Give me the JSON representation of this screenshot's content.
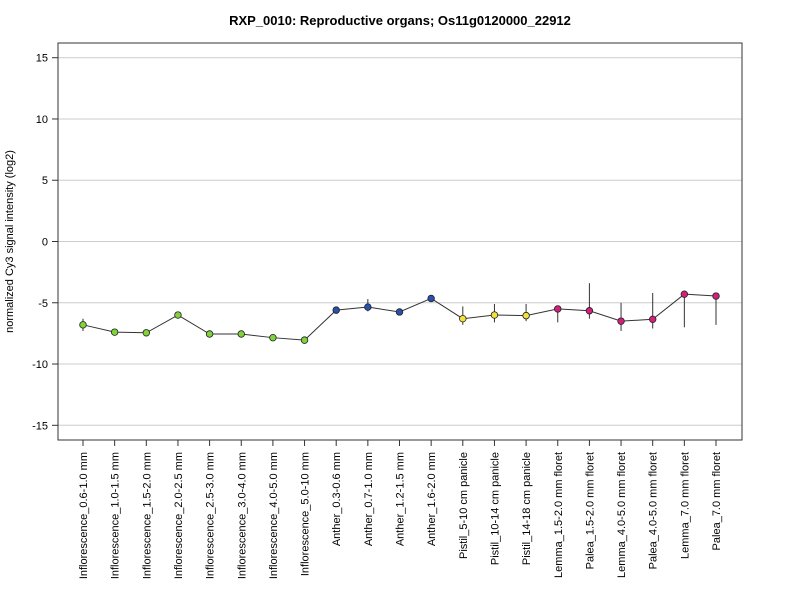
{
  "chart_data": {
    "type": "line",
    "title": "RXP_0010: Reproductive organs; Os11g0120000_22912",
    "ylabel": "normalized Cy3 signal intensity (log2)",
    "xlabel": "",
    "ylim": [
      -16.2,
      16.2
    ],
    "yticks": [
      -15,
      -10,
      -5,
      0,
      5,
      10,
      15
    ],
    "grid": true,
    "categories": [
      "Inflorescence_0.6-1.0 mm",
      "Inflorescence_1.0-1.5 mm",
      "Inflorescence_1.5-2.0 mm",
      "Inflorescence_2.0-2.5 mm",
      "Inflorescence_2.5-3.0 mm",
      "Inflorescence_3.0-4.0 mm",
      "Inflorescence_4.0-5.0 mm",
      "Inflorescence_5.0-10 mm",
      "Anther_0.3-0.6 mm",
      "Anther_0.7-1.0 mm",
      "Anther_1.2-1.5 mm",
      "Anther_1.6-2.0 mm",
      "Pistil_5-10 cm panicle",
      "Pistil_10-14 cm panicle",
      "Pistil_14-18 cm panicle",
      "Lemma_1.5-2.0 mm floret",
      "Palea_1.5-2.0 mm floret",
      "Lemma_4.0-5.0 mm floret",
      "Palea_4.0-5.0 mm floret",
      "Lemma_7.0 mm floret",
      "Palea_7.0 mm floret"
    ],
    "values": [
      -6.8,
      -7.4,
      -7.45,
      -6.0,
      -7.55,
      -7.55,
      -7.85,
      -8.05,
      -5.6,
      -5.35,
      -5.75,
      -4.65,
      -6.3,
      -6.0,
      -6.05,
      -5.5,
      -5.65,
      -6.5,
      -6.35,
      -4.3,
      -4.45
    ],
    "error_low": [
      -7.3,
      -7.6,
      -7.6,
      -6.1,
      -7.7,
      -7.7,
      -8.0,
      -8.2,
      -5.7,
      -5.7,
      -5.9,
      -4.8,
      -6.8,
      -6.6,
      -6.5,
      -6.6,
      -6.3,
      -7.3,
      -7.1,
      -7.0,
      -6.8
    ],
    "error_high": [
      -6.3,
      -7.2,
      -7.3,
      -5.9,
      -7.4,
      -7.4,
      -7.7,
      -7.9,
      -5.5,
      -4.7,
      -5.6,
      -4.5,
      -5.3,
      -5.1,
      -5.1,
      -5.3,
      -3.4,
      -5.0,
      -4.2,
      -4.2,
      -4.3
    ],
    "point_colors": [
      "#7fd43a",
      "#7fd43a",
      "#7fd43a",
      "#7fd43a",
      "#7fd43a",
      "#7fd43a",
      "#7fd43a",
      "#7fd43a",
      "#2a4fb0",
      "#2a4fb0",
      "#2a4fb0",
      "#2a4fb0",
      "#f2e33a",
      "#f2e33a",
      "#f2e33a",
      "#d4207a",
      "#d4207a",
      "#d4207a",
      "#d4207a",
      "#d4207a",
      "#d4207a"
    ],
    "line_color": "#333333",
    "grid_color": "#cccccc"
  }
}
